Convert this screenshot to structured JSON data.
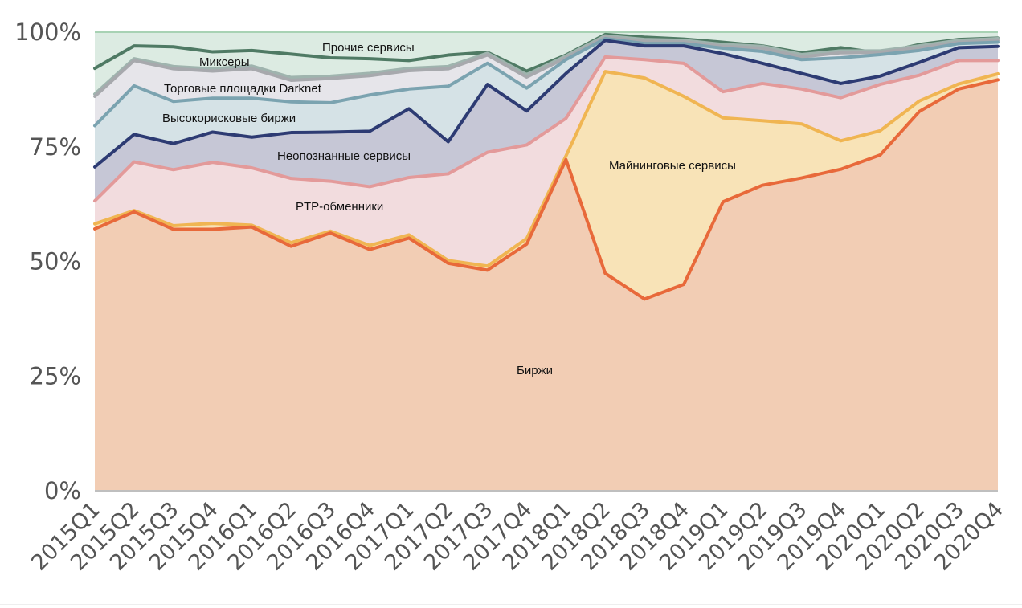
{
  "chart_data": {
    "type": "area",
    "stacked": true,
    "normalized_percent": true,
    "title": "",
    "xlabel": "",
    "ylabel": "",
    "ylim": [
      0,
      100
    ],
    "yticks": [
      "0%",
      "25%",
      "50%",
      "75%",
      "100%"
    ],
    "grid": false,
    "categories": [
      "2015Q1",
      "2015Q2",
      "2015Q3",
      "2015Q4",
      "2016Q1",
      "2016Q2",
      "2016Q3",
      "2016Q4",
      "2017Q1",
      "2017Q2",
      "2017Q3",
      "2017Q4",
      "2018Q1",
      "2018Q2",
      "2018Q3",
      "2018Q4",
      "2019Q1",
      "2019Q2",
      "2019Q3",
      "2019Q4",
      "2020Q1",
      "2020Q2",
      "2020Q3",
      "2020Q4"
    ],
    "series": [
      {
        "name": "Биржи",
        "fill": "#f2cdb4",
        "line": "#e8693a",
        "cumulative": [
          57.1,
          60.8,
          57.0,
          57.0,
          57.5,
          53.3,
          56.2,
          52.6,
          55.1,
          49.6,
          48.1,
          53.8,
          72.2,
          47.4,
          41.8,
          45.0,
          63.0,
          66.6,
          68.2,
          70.1,
          73.2,
          82.7,
          87.6,
          89.6
        ]
      },
      {
        "name": "Майнинговые сервисы",
        "fill": "#f8e3b7",
        "line": "#f0b552",
        "cumulative": [
          58.2,
          61.1,
          57.8,
          58.3,
          57.9,
          54.1,
          56.6,
          53.5,
          55.8,
          50.2,
          49.0,
          55.0,
          73.0,
          91.4,
          90.0,
          86.0,
          81.3,
          80.7,
          80.0,
          76.3,
          78.5,
          85.0,
          88.7,
          90.9
        ]
      },
      {
        "name": "PTP-обменники",
        "fill": "#f2dcde",
        "line": "#e39a9a",
        "cumulative": [
          63.2,
          71.7,
          70.0,
          71.6,
          70.4,
          68.1,
          67.5,
          66.3,
          68.3,
          69.1,
          73.8,
          75.4,
          81.2,
          94.6,
          94.0,
          93.2,
          87.0,
          88.8,
          87.6,
          85.7,
          88.6,
          90.6,
          93.8,
          93.8
        ]
      },
      {
        "name": "Неопознанные сервисы",
        "fill": "#c6c7d6",
        "line": "#2d3b73",
        "cumulative": [
          70.6,
          77.7,
          75.7,
          78.2,
          77.1,
          78.1,
          78.2,
          78.4,
          83.3,
          76.1,
          88.6,
          82.8,
          91.0,
          98.2,
          97.0,
          97.0,
          95.3,
          93.2,
          91.0,
          88.8,
          90.4,
          93.4,
          96.6,
          96.9
        ]
      },
      {
        "name": "Высокорисковые биржи",
        "fill": "#d5e2e6",
        "line": "#7ba3b0",
        "cumulative": [
          79.6,
          88.3,
          84.9,
          85.6,
          85.6,
          84.8,
          84.6,
          86.3,
          87.6,
          88.2,
          93.2,
          87.8,
          94.0,
          98.6,
          97.5,
          97.5,
          96.5,
          95.8,
          94.0,
          94.4,
          95.1,
          96.0,
          97.5,
          97.8
        ]
      },
      {
        "name": "Торговые площадки Darknet",
        "fill": "#e6e5ea",
        "line": "#a7a9ad",
        "cumulative": [
          86.0,
          93.8,
          92.0,
          91.5,
          92.0,
          89.5,
          89.9,
          90.5,
          91.6,
          92.0,
          95.0,
          90.2,
          94.4,
          98.9,
          98.0,
          97.9,
          96.9,
          96.5,
          94.6,
          95.5,
          95.6,
          96.6,
          97.8,
          98.2
        ]
      },
      {
        "name": "Миксеры",
        "fill": "#c6d4d1",
        "line": "#9fb4ae",
        "cumulative": [
          86.5,
          94.2,
          92.5,
          92.0,
          92.6,
          90.1,
          90.4,
          91.0,
          92.1,
          92.5,
          95.4,
          90.7,
          94.8,
          99.2,
          98.4,
          98.2,
          97.3,
          96.9,
          95.1,
          95.9,
          95.9,
          97.0,
          98.2,
          98.6
        ]
      },
      {
        "name": "Прочие сервисы",
        "fill": "#dcebe2",
        "line": "#4f7a64",
        "cumulative": [
          92.1,
          97.0,
          96.8,
          95.7,
          96.0,
          95.2,
          94.4,
          94.2,
          93.8,
          95.0,
          95.6,
          91.5,
          95.0,
          99.5,
          98.9,
          98.5,
          97.8,
          97.0,
          95.5,
          96.6,
          95.4,
          97.3,
          98.4,
          98.7
        ]
      }
    ],
    "annotations": {
      "other": "Прочие сервисы",
      "mixers": "Миксеры",
      "darknet": "Торговые площадки Darknet",
      "high_risk": "Высокорисковые биржи",
      "unidentified": "Неопознанные сервисы",
      "ptp": "PTP-обменники",
      "mining": "Майнинговые сервисы",
      "exchanges": "Биржи"
    },
    "top_band_color": "#dcebe2",
    "top_line_color": "#a8d2b4"
  }
}
